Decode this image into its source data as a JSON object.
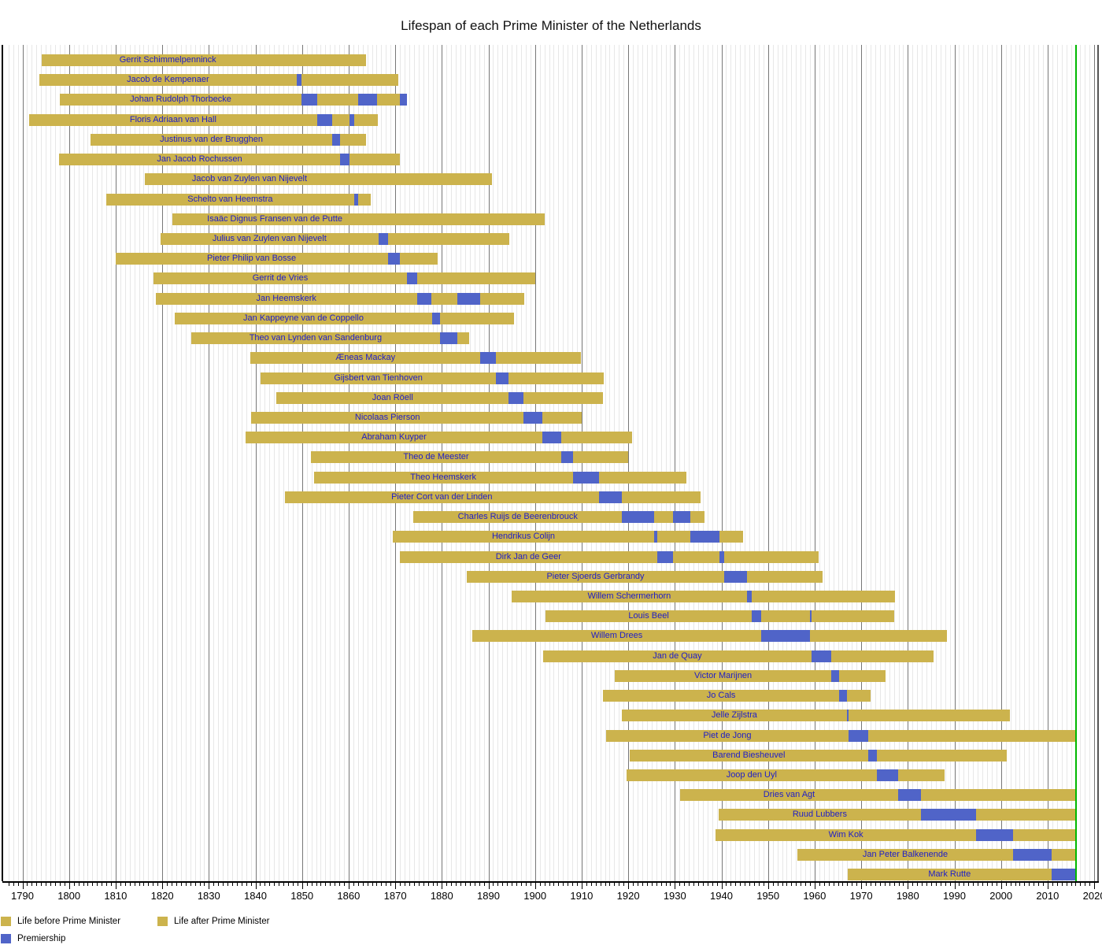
{
  "title": "Lifespan of each Prime Minister of the Netherlands",
  "legend": {
    "life_before": "Life before Prime Minister",
    "life_after": "Life after Prime Minister",
    "premiership": "Premiership"
  },
  "colors": {
    "life_bar": "#CCB34D",
    "premiership": "#5064C8",
    "name_text": "#1E1EC8",
    "now_line": "#00B800",
    "grid_light": "#E7E7E7",
    "grid_dark": "#777777",
    "frame": "#000000"
  },
  "chart_data": {
    "type": "bar",
    "variant": "gantt-lifespan-timeline",
    "title": "Lifespan of each Prime Minister of the Netherlands",
    "xlabel": "Year",
    "x_range_gridlines": [
      1787,
      2020
    ],
    "x_tick_labels": [
      1790,
      1800,
      1810,
      1820,
      1830,
      1840,
      1850,
      1860,
      1870,
      1880,
      1890,
      1900,
      1910,
      1920,
      1930,
      1940,
      1950,
      1960,
      1970,
      1980,
      1990,
      2000,
      2010,
      2020
    ],
    "gridlines": "yearly light, decade dark",
    "now_year": 2016,
    "legend_position": "bottom-left",
    "pms": [
      {
        "name": "Gerrit Schimmelpenninck",
        "born": 1794.15,
        "died": 1863.75,
        "premierships": [],
        "first_premiership_start": 1848.25
      },
      {
        "name": "Jacob de Kempenaer",
        "born": 1793.55,
        "died": 1870.7,
        "premierships": [
          [
            1848.9,
            1849.85
          ]
        ]
      },
      {
        "name": "Johan Rudolph Thorbecke",
        "born": 1798.05,
        "died": 1872.45,
        "premierships": [
          [
            1849.85,
            1853.3
          ],
          [
            1862.1,
            1866.1
          ],
          [
            1871.0,
            1872.45
          ]
        ]
      },
      {
        "name": "Floris Adriaan van Hall",
        "born": 1791.35,
        "died": 1866.25,
        "premierships": [
          [
            1853.3,
            1856.5
          ],
          [
            1860.15,
            1861.2
          ]
        ]
      },
      {
        "name": "Justinus van der Brugghen",
        "born": 1804.6,
        "died": 1863.75,
        "premierships": [
          [
            1856.5,
            1858.2
          ]
        ]
      },
      {
        "name": "Jan Jacob Rochussen",
        "born": 1797.8,
        "died": 1871.05,
        "premierships": [
          [
            1858.2,
            1860.15
          ]
        ]
      },
      {
        "name": "Jacob van Zuylen van Nijevelt",
        "born": 1816.25,
        "died": 1890.85,
        "premierships": [],
        "first_premiership_start": 1861.2
      },
      {
        "name": "Schelto van Heemstra",
        "born": 1807.95,
        "died": 1864.8,
        "premierships": [
          [
            1861.2,
            1862.1
          ]
        ]
      },
      {
        "name": "Isaäc Dignus Fransen van de Putte",
        "born": 1822.2,
        "died": 1902.15,
        "premierships": [],
        "first_premiership_start": 1866.1
      },
      {
        "name": "Julius van Zuylen van Nijevelt",
        "born": 1819.6,
        "died": 1894.5,
        "premierships": [
          [
            1866.4,
            1868.4
          ]
        ]
      },
      {
        "name": "Pieter Philip van Bosse",
        "born": 1809.95,
        "died": 1879.15,
        "premierships": [
          [
            1868.4,
            1871.0
          ]
        ]
      },
      {
        "name": "Gerrit de Vries",
        "born": 1818.15,
        "died": 1900.15,
        "premierships": [
          [
            1872.5,
            1874.65
          ]
        ]
      },
      {
        "name": "Jan Heemskerk",
        "born": 1818.6,
        "died": 1897.75,
        "premierships": [
          [
            1874.65,
            1877.85
          ],
          [
            1883.3,
            1888.3
          ]
        ]
      },
      {
        "name": "Jan Kappeyne van de Coppello",
        "born": 1822.75,
        "died": 1895.55,
        "premierships": [
          [
            1877.85,
            1879.65
          ]
        ]
      },
      {
        "name": "Theo van Lynden van Sandenburg",
        "born": 1826.15,
        "died": 1885.9,
        "premierships": [
          [
            1879.65,
            1883.3
          ]
        ]
      },
      {
        "name": "Æneas Mackay",
        "born": 1838.9,
        "died": 1909.85,
        "premierships": [
          [
            1888.3,
            1891.65
          ]
        ]
      },
      {
        "name": "Gijsbert van Tienhoven",
        "born": 1841.1,
        "died": 1914.8,
        "premierships": [
          [
            1891.65,
            1894.35
          ]
        ]
      },
      {
        "name": "Joan Röell",
        "born": 1844.55,
        "died": 1914.55,
        "premierships": [
          [
            1894.35,
            1897.55
          ]
        ]
      },
      {
        "name": "Nicolaas Pierson",
        "born": 1839.1,
        "died": 1909.98,
        "premierships": [
          [
            1897.55,
            1901.6
          ]
        ]
      },
      {
        "name": "Abraham Kuyper",
        "born": 1837.85,
        "died": 1920.85,
        "premierships": [
          [
            1901.6,
            1905.6
          ]
        ]
      },
      {
        "name": "Theo de Meester",
        "born": 1851.95,
        "died": 1919.99,
        "premierships": [
          [
            1905.6,
            1908.1
          ]
        ]
      },
      {
        "name": "Theo Heemskerk",
        "born": 1852.55,
        "died": 1932.45,
        "premierships": [
          [
            1908.1,
            1913.65
          ]
        ]
      },
      {
        "name": "Pieter Cort van der Linden",
        "born": 1846.35,
        "died": 1935.55,
        "premierships": [
          [
            1913.65,
            1918.7
          ]
        ]
      },
      {
        "name": "Charles Ruijs de Beerenbrouck",
        "born": 1873.9,
        "died": 1936.3,
        "premierships": [
          [
            1918.7,
            1925.6
          ],
          [
            1929.6,
            1933.4
          ]
        ]
      },
      {
        "name": "Hendrikus Colijn",
        "born": 1869.45,
        "died": 1944.7,
        "premierships": [
          [
            1925.6,
            1926.2
          ],
          [
            1933.4,
            1939.6
          ]
        ]
      },
      {
        "name": "Dirk Jan de Geer",
        "born": 1870.95,
        "died": 1960.9,
        "premierships": [
          [
            1926.2,
            1929.6
          ],
          [
            1939.6,
            1940.65
          ]
        ]
      },
      {
        "name": "Pieter Sjoerds Gerbrandy",
        "born": 1885.3,
        "died": 1961.7,
        "premierships": [
          [
            1940.65,
            1945.5
          ]
        ]
      },
      {
        "name": "Willem Schermerhorn",
        "born": 1894.95,
        "died": 1977.2,
        "premierships": [
          [
            1945.5,
            1946.5
          ]
        ]
      },
      {
        "name": "Louis Beel",
        "born": 1902.3,
        "died": 1977.1,
        "premierships": [
          [
            1946.5,
            1948.6
          ],
          [
            1958.95,
            1959.4
          ]
        ]
      },
      {
        "name": "Willem Drees",
        "born": 1886.5,
        "died": 1988.35,
        "premierships": [
          [
            1948.6,
            1958.95
          ]
        ]
      },
      {
        "name": "Jan de Quay",
        "born": 1901.65,
        "died": 1985.5,
        "premierships": [
          [
            1959.4,
            1963.55
          ]
        ]
      },
      {
        "name": "Victor Marijnen",
        "born": 1917.15,
        "died": 1975.25,
        "premierships": [
          [
            1963.55,
            1965.3
          ]
        ]
      },
      {
        "name": "Jo Cals",
        "born": 1914.55,
        "died": 1971.99,
        "premierships": [
          [
            1965.3,
            1966.9
          ]
        ]
      },
      {
        "name": "Jelle Zijlstra",
        "born": 1918.65,
        "died": 2001.98,
        "premierships": [
          [
            1966.9,
            1967.25
          ]
        ]
      },
      {
        "name": "Piet de Jong",
        "born": 1915.25,
        "died": 2016.0,
        "premierships": [
          [
            1967.25,
            1971.5
          ]
        ]
      },
      {
        "name": "Barend Biesheuvel",
        "born": 1920.25,
        "died": 2001.3,
        "premierships": [
          [
            1971.5,
            1973.35
          ]
        ]
      },
      {
        "name": "Joop den Uyl",
        "born": 1919.6,
        "died": 1987.98,
        "premierships": [
          [
            1973.35,
            1977.95
          ]
        ]
      },
      {
        "name": "Dries van Agt",
        "born": 1931.1,
        "died": null,
        "premierships": [
          [
            1977.95,
            1982.85
          ]
        ]
      },
      {
        "name": "Ruud Lubbers",
        "born": 1939.35,
        "died": null,
        "premierships": [
          [
            1982.85,
            1994.65
          ]
        ]
      },
      {
        "name": "Wim Kok",
        "born": 1938.75,
        "died": null,
        "premierships": [
          [
            1994.65,
            2002.55
          ]
        ]
      },
      {
        "name": "Jan Peter Balkenende",
        "born": 1956.35,
        "died": null,
        "premierships": [
          [
            2002.55,
            2010.8
          ]
        ]
      },
      {
        "name": "Mark Rutte",
        "born": 1967.1,
        "died": null,
        "premierships": [
          [
            2010.8,
            null
          ]
        ]
      }
    ]
  }
}
